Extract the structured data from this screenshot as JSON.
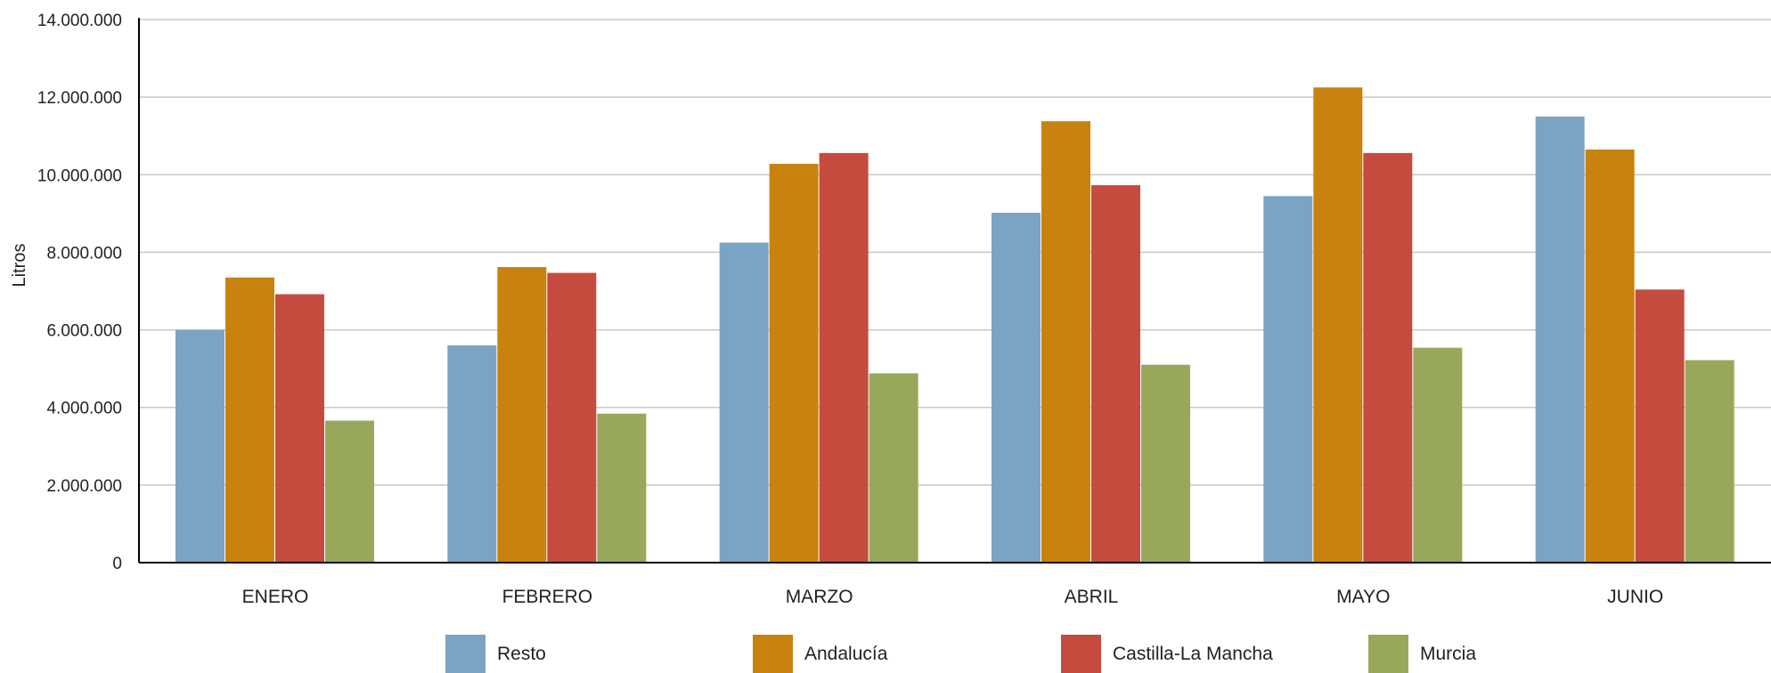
{
  "chart_data": {
    "type": "bar",
    "title": "",
    "xlabel": "",
    "ylabel": "Litros",
    "ylim": [
      0,
      14000000
    ],
    "yticks": [
      0,
      2000000,
      4000000,
      6000000,
      8000000,
      10000000,
      12000000,
      14000000
    ],
    "ytick_labels": [
      "0",
      "2.000.000",
      "4.000.000",
      "6.000.000",
      "8.000.000",
      "10.000.000",
      "12.000.000",
      "14.000.000"
    ],
    "categories": [
      "ENERO",
      "FEBRERO",
      "MARZO",
      "ABRIL",
      "MAYO",
      "JUNIO"
    ],
    "series": [
      {
        "name": "Resto",
        "color": "#7ba3c3",
        "values": [
          6000000,
          5600000,
          8250000,
          9020000,
          9450000,
          11500000
        ]
      },
      {
        "name": "Andalucía",
        "color": "#c9820e",
        "values": [
          7350000,
          7620000,
          10280000,
          11380000,
          12250000,
          10650000
        ]
      },
      {
        "name": "Castilla-La Mancha",
        "color": "#c64b3f",
        "values": [
          6920000,
          7470000,
          10560000,
          9730000,
          10560000,
          7040000
        ]
      },
      {
        "name": "Murcia",
        "color": "#98a85b",
        "values": [
          3660000,
          3840000,
          4880000,
          5100000,
          5540000,
          5220000
        ]
      }
    ],
    "grid": true,
    "legend_position": "bottom"
  }
}
